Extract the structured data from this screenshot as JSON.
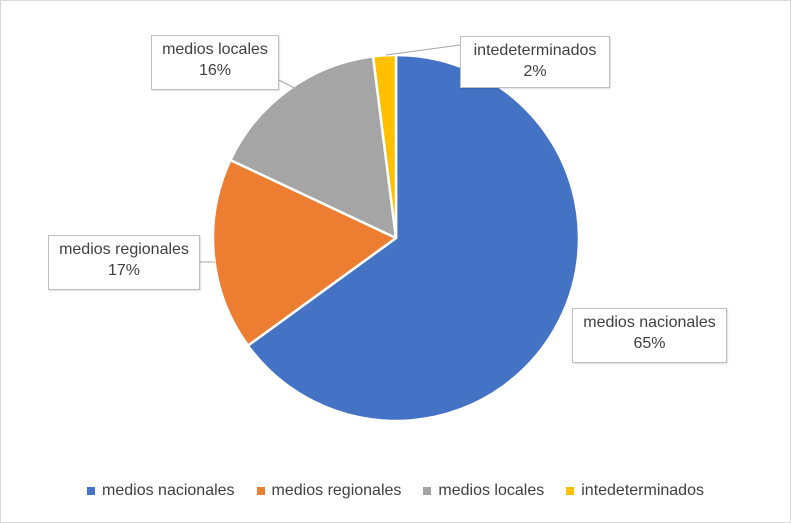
{
  "chart_data": {
    "type": "pie",
    "categories": [
      "medios nacionales",
      "medios regionales",
      "medios locales",
      "intedeterminados"
    ],
    "values": [
      65,
      17,
      16,
      2
    ],
    "value_labels": [
      "65%",
      "17%",
      "16%",
      "2%"
    ],
    "colors": [
      "#4472C4",
      "#ED7D31",
      "#A5A5A5",
      "#FFC000"
    ],
    "legend_position": "bottom"
  }
}
